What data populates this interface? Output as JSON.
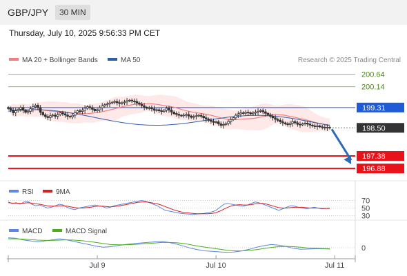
{
  "header": {
    "pair": "GBP/JPY",
    "timeframe": "30 MIN",
    "datetime": "Thursday, July 10, 2025 9:56:33 PM CET"
  },
  "legend": {
    "ma20": "MA 20 + Bollinger Bands",
    "ma50": "MA 50",
    "credit": "Research © 2025 Trading Central",
    "rsi": "RSI",
    "rsi_ma": "9MA",
    "macd": "MACD",
    "macd_signal": "MACD Signal"
  },
  "colors": {
    "ma20": "#f08080",
    "ma50": "#2e5ea8",
    "bollinger_fill": "#fde0e0",
    "resistance": "#8bc34a",
    "pivot": "#1f5bd6",
    "support": "#e8121a",
    "last_price_box": "#333333",
    "arrow": "#2e6ab3",
    "rsi": "#5b86e5",
    "rsi_ma": "#d62020",
    "macd": "#5b86e5",
    "macd_signal": "#4caf1a",
    "candle": "#333333"
  },
  "chart_data": [
    {
      "type": "candlestick",
      "title": "GBP/JPY",
      "x_tick_labels": [
        "Jul 9",
        "Jul 10",
        "Jul 11"
      ],
      "x_tick_index": [
        36,
        84,
        132
      ],
      "ylim": [
        196.5,
        200.9
      ],
      "close": [
        199.27,
        199.21,
        199.1,
        199.18,
        199.24,
        199.31,
        199.2,
        199.12,
        199.16,
        199.26,
        199.34,
        199.4,
        199.3,
        199.12,
        199.02,
        198.95,
        198.91,
        198.98,
        199.01,
        198.96,
        199.02,
        199.1,
        199.06,
        199.01,
        198.96,
        198.94,
        199.0,
        199.1,
        199.18,
        199.15,
        199.2,
        199.28,
        199.34,
        199.3,
        199.24,
        199.18,
        199.22,
        199.3,
        199.37,
        199.42,
        199.45,
        199.49,
        199.52,
        199.55,
        199.5,
        199.47,
        199.5,
        199.53,
        199.58,
        199.6,
        199.57,
        199.55,
        199.49,
        199.44,
        199.38,
        199.32,
        199.28,
        199.3,
        199.26,
        199.2,
        199.22,
        199.18,
        199.15,
        199.2,
        199.28,
        199.21,
        199.13,
        199.07,
        199.04,
        199.0,
        198.98,
        199.01,
        199.03,
        198.97,
        198.92,
        198.95,
        198.98,
        199.0,
        198.96,
        198.9,
        198.85,
        198.8,
        198.76,
        198.72,
        198.74,
        198.66,
        198.6,
        198.63,
        198.68,
        198.75,
        198.83,
        198.9,
        199.0,
        199.06,
        199.1,
        199.08,
        199.12,
        199.1,
        199.06,
        199.09,
        199.13,
        199.16,
        199.19,
        199.14,
        199.08,
        199.02,
        198.96,
        198.9,
        198.84,
        198.8,
        198.74,
        198.7,
        198.66,
        198.63,
        198.68,
        198.75,
        198.7,
        198.64,
        198.62,
        198.66,
        198.69,
        198.65,
        198.61,
        198.58,
        198.55,
        198.58,
        198.54,
        198.52,
        198.51,
        198.52,
        198.5
      ],
      "last_price": 198.5,
      "levels": [
        {
          "label": "200.64",
          "value": 200.64,
          "kind": "resistance"
        },
        {
          "label": "200.14",
          "value": 200.14,
          "kind": "resistance"
        },
        {
          "label": "199.31",
          "value": 199.31,
          "kind": "pivot"
        },
        {
          "label": "198.50",
          "value": 198.5,
          "kind": "last"
        },
        {
          "label": "197.38",
          "value": 197.38,
          "kind": "support"
        },
        {
          "label": "196.88",
          "value": 196.88,
          "kind": "support"
        }
      ],
      "arrow_target": 197.05,
      "series": [
        {
          "name": "MA 20 + Bollinger Bands",
          "type": "line"
        },
        {
          "name": "MA 50",
          "type": "line"
        }
      ]
    },
    {
      "type": "line",
      "title": "RSI",
      "ylim": [
        20,
        80
      ],
      "ticks": [
        70,
        50,
        30
      ],
      "series": [
        {
          "name": "RSI",
          "values": [
            66,
            62,
            64,
            60,
            66,
            68,
            60,
            56,
            58,
            54,
            50,
            52,
            56,
            60,
            58,
            52,
            48,
            46,
            50,
            52,
            54,
            56,
            58,
            56,
            54,
            50,
            52,
            56,
            58,
            60,
            62,
            64,
            66,
            68,
            70,
            68,
            64,
            60,
            56,
            50,
            44,
            42,
            40,
            38,
            36,
            35,
            34,
            33,
            34,
            35,
            36,
            38,
            40,
            44,
            52,
            60,
            62,
            60,
            58,
            56,
            55,
            58,
            62,
            66,
            64,
            60,
            56,
            52,
            48,
            44,
            48,
            52,
            56,
            55,
            52,
            50,
            48,
            50,
            52,
            50,
            48,
            49,
            50
          ]
        },
        {
          "name": "9MA",
          "values": [
            64,
            63,
            63,
            62,
            63,
            64,
            63,
            61,
            60,
            58,
            56,
            55,
            55,
            56,
            56,
            55,
            53,
            51,
            50,
            50,
            51,
            52,
            54,
            55,
            55,
            54,
            53,
            54,
            55,
            57,
            59,
            61,
            63,
            65,
            66,
            66,
            65,
            63,
            61,
            58,
            54,
            50,
            46,
            43,
            40,
            38,
            37,
            36,
            35,
            35,
            35,
            35,
            36,
            38,
            42,
            47,
            52,
            56,
            58,
            59,
            58,
            58,
            59,
            61,
            62,
            62,
            60,
            57,
            54,
            51,
            50,
            50,
            51,
            52,
            52,
            52,
            51,
            50,
            50,
            50,
            49,
            49,
            49
          ]
        }
      ]
    },
    {
      "type": "line",
      "title": "MACD",
      "ylim": [
        -0.5,
        0.5
      ],
      "ticks": [
        0
      ],
      "series": [
        {
          "name": "MACD",
          "values": [
            0.38,
            0.36,
            0.3,
            0.26,
            0.22,
            0.26,
            0.3,
            0.34,
            0.3,
            0.24,
            0.18,
            0.12,
            0.06,
            0.02,
            0.04,
            0.08,
            0.12,
            0.15,
            0.18,
            0.2,
            0.22,
            0.24,
            0.2,
            0.14,
            0.06,
            -0.02,
            -0.08,
            -0.12,
            -0.14,
            -0.16,
            -0.18,
            -0.16,
            -0.12,
            -0.06,
            0.02,
            0.08,
            0.12,
            0.1,
            0.05,
            -0.02,
            -0.06,
            -0.05,
            -0.04,
            -0.04,
            -0.05
          ]
        },
        {
          "name": "MACD Signal",
          "values": [
            0.34,
            0.34,
            0.33,
            0.31,
            0.29,
            0.28,
            0.28,
            0.29,
            0.3,
            0.29,
            0.27,
            0.24,
            0.2,
            0.16,
            0.12,
            0.11,
            0.11,
            0.12,
            0.14,
            0.16,
            0.18,
            0.2,
            0.2,
            0.19,
            0.16,
            0.11,
            0.06,
            0.02,
            -0.02,
            -0.06,
            -0.1,
            -0.12,
            -0.12,
            -0.1,
            -0.07,
            -0.03,
            0.01,
            0.04,
            0.05,
            0.04,
            0.02,
            -0.01,
            -0.02,
            -0.03,
            -0.04
          ]
        }
      ]
    }
  ]
}
